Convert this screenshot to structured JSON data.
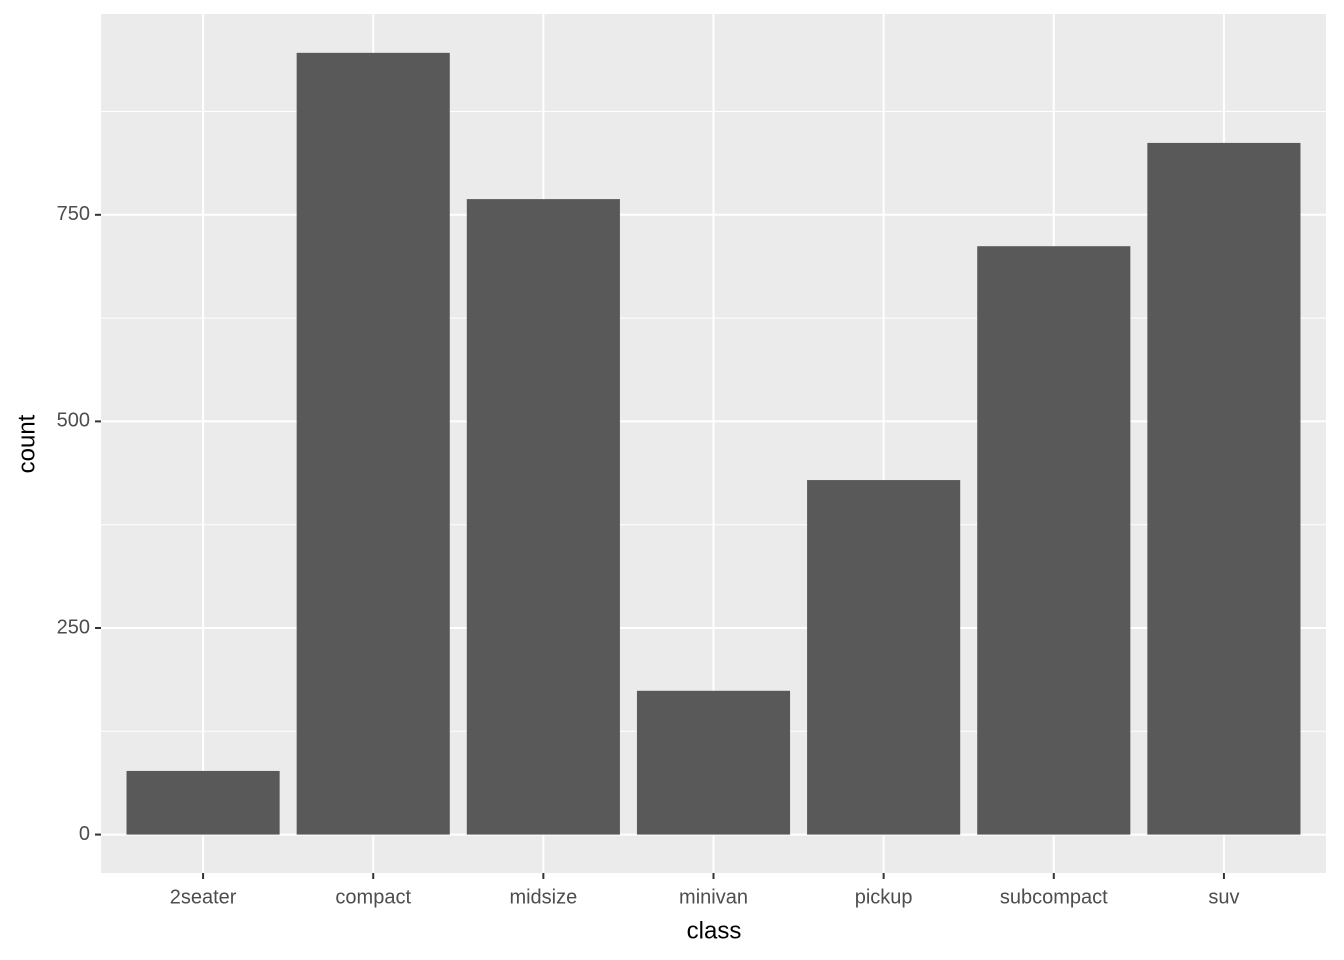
{
  "chart_data": {
    "type": "bar",
    "x_label": "class",
    "y_label": "count",
    "categories": [
      "2seater",
      "compact",
      "midsize",
      "minivan",
      "pickup",
      "subcompact",
      "suv"
    ],
    "values": [
      77,
      946,
      769,
      174,
      429,
      712,
      837
    ],
    "color": "#595959",
    "ylim": [
      -46.5,
      993
    ],
    "yticks": [
      0,
      250,
      500,
      750
    ],
    "minor_yticks": [
      125,
      375,
      625,
      875
    ],
    "grid": true
  }
}
